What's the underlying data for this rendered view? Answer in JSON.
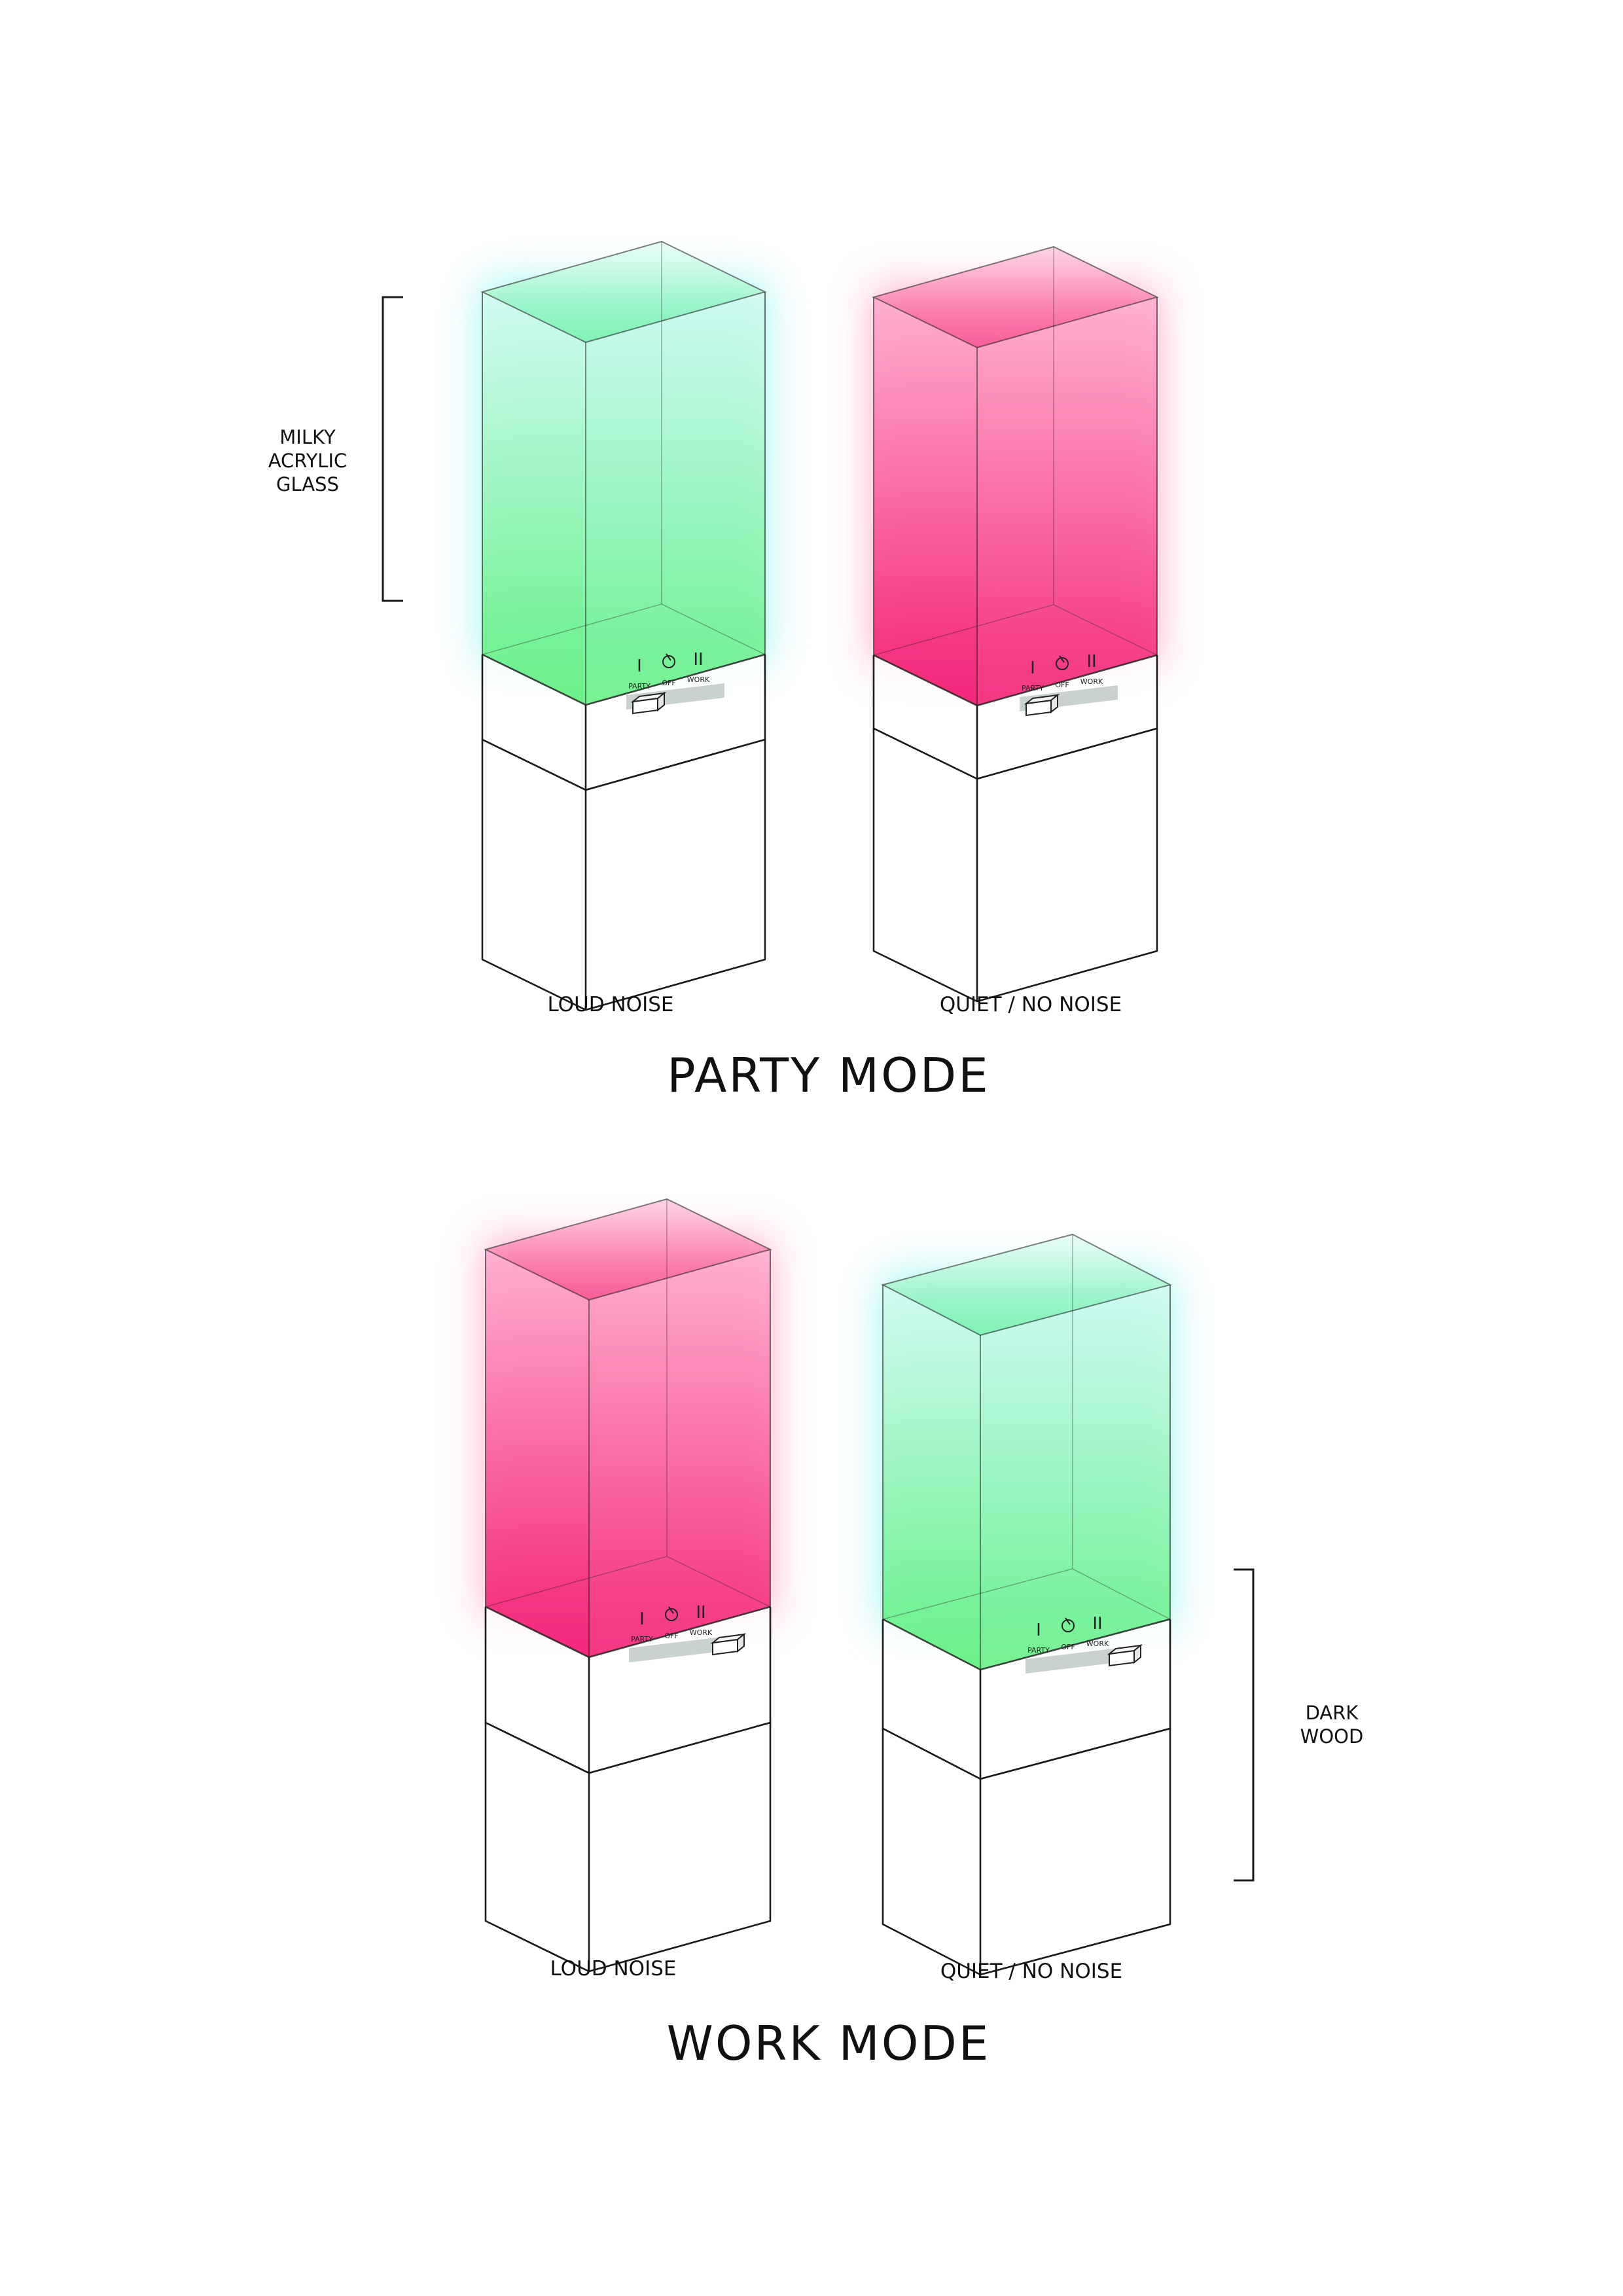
{
  "annotations": {
    "glass": [
      "MILKY",
      "ACRYLIC",
      "GLASS"
    ],
    "wood": [
      "DARK",
      "WOOD"
    ]
  },
  "switch_labels": {
    "party": "PARTY",
    "off": "OFF",
    "work": "WORK",
    "party_icon": "I",
    "work_icon": "II"
  },
  "colors": {
    "green_top": "#d4fbf4",
    "green_bottom": "#5df07d",
    "green_glow": "#8ff2ee",
    "pink_top": "#ffaed0",
    "pink_bottom": "#f2136d",
    "pink_glow": "#ffa3c1",
    "line": "#1a1a1a",
    "slider_track": "#c9d2cf"
  },
  "sections": [
    {
      "title": "PARTY MODE",
      "lamps": [
        {
          "caption": "LOUD NOISE",
          "glow": "green",
          "switch_position": "party"
        },
        {
          "caption": "QUIET / NO NOISE",
          "glow": "pink",
          "switch_position": "party"
        }
      ]
    },
    {
      "title": "WORK MODE",
      "lamps": [
        {
          "caption": "LOUD NOISE",
          "glow": "pink",
          "switch_position": "work"
        },
        {
          "caption": "QUIET / NO NOISE",
          "glow": "green",
          "switch_position": "work"
        }
      ]
    }
  ]
}
